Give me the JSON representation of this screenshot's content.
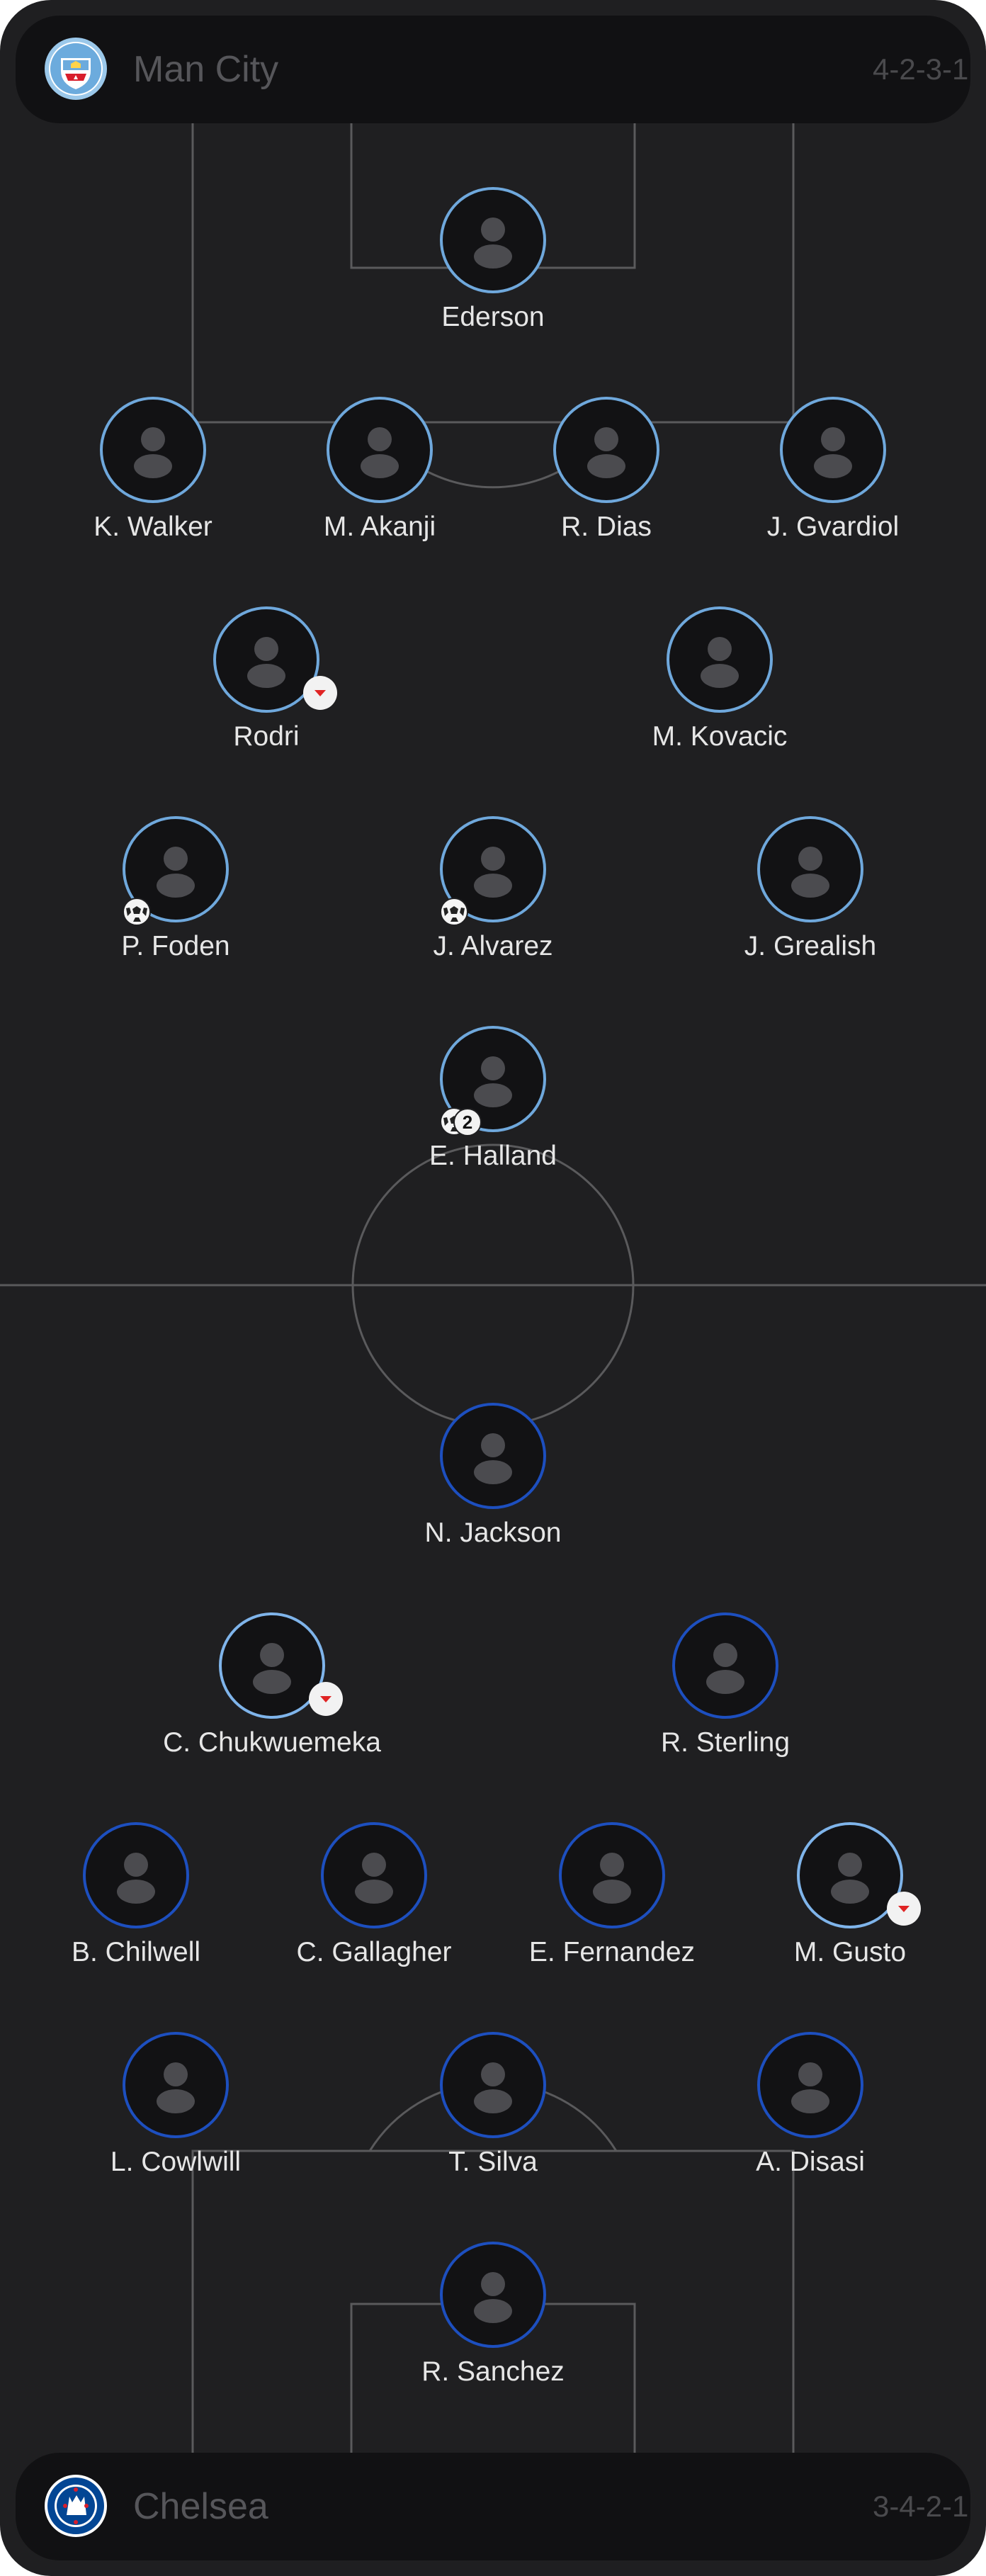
{
  "home": {
    "name": "Man City",
    "formation": "4-2-3-1",
    "crest_icon": "man-city-crest",
    "accent_color": "#6fa8dc",
    "players": [
      {
        "name": "Ederson",
        "events": []
      },
      {
        "name": "K. Walker",
        "events": []
      },
      {
        "name": "M. Akanji",
        "events": []
      },
      {
        "name": "R. Dias",
        "events": []
      },
      {
        "name": "J. Gvardiol",
        "events": []
      },
      {
        "name": "Rodri",
        "events": [
          "substituted-off"
        ]
      },
      {
        "name": "M. Kovacic",
        "events": []
      },
      {
        "name": "P. Foden",
        "events": [
          "goal"
        ]
      },
      {
        "name": "J. Alvarez",
        "events": [
          "goal"
        ]
      },
      {
        "name": "J. Grealish",
        "events": []
      },
      {
        "name": "E. Halland",
        "events": [
          "goal"
        ],
        "goal_count": "2"
      }
    ]
  },
  "away": {
    "name": "Chelsea",
    "formation": "3-4-2-1",
    "crest_icon": "chelsea-crest",
    "accent_color": "#1d4fbf",
    "players": [
      {
        "name": "N. Jackson",
        "events": []
      },
      {
        "name": "C. Chukwuemeka",
        "events": [
          "substituted-off"
        ]
      },
      {
        "name": "R. Sterling",
        "events": []
      },
      {
        "name": "B. Chilwell",
        "events": []
      },
      {
        "name": "C. Gallagher",
        "events": []
      },
      {
        "name": "E. Fernandez",
        "events": []
      },
      {
        "name": "M. Gusto",
        "events": [
          "substituted-off"
        ]
      },
      {
        "name": "L. Cowlwill",
        "events": []
      },
      {
        "name": "T. Silva",
        "events": []
      },
      {
        "name": "A. Disasi",
        "events": []
      },
      {
        "name": "R. Sanchez",
        "events": []
      }
    ]
  }
}
